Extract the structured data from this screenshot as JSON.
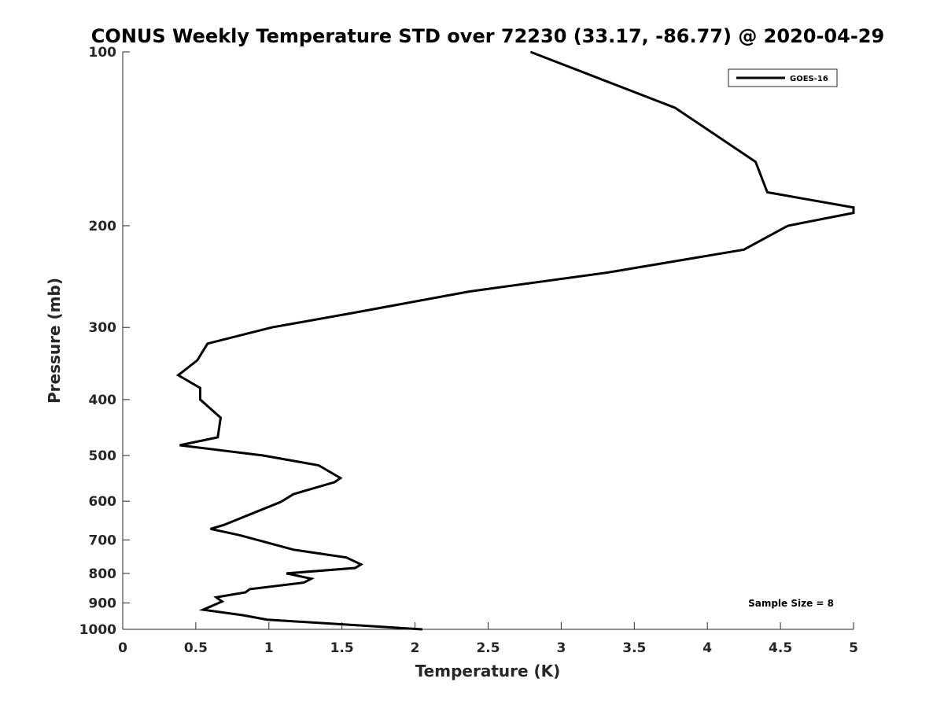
{
  "chart_data": {
    "type": "line",
    "title": "CONUS Weekly Temperature STD over 72230 (33.17, -86.77) @ 2020-04-29",
    "xlabel": "Temperature (K)",
    "ylabel": "Pressure (mb)",
    "xlim": [
      0,
      5
    ],
    "ylim": [
      100,
      1000
    ],
    "y_scale": "log",
    "y_reversed": true,
    "x_ticks": [
      "0",
      "0.5",
      "1",
      "1.5",
      "2",
      "2.5",
      "3",
      "3.5",
      "4",
      "4.5",
      "5"
    ],
    "y_ticks": [
      "100",
      "200",
      "300",
      "400",
      "500",
      "600",
      "700",
      "800",
      "900",
      "1000"
    ],
    "grid": false,
    "legend_position": "top-right",
    "annotation": "Sample Size = 8",
    "series": [
      {
        "name": "GOES-16",
        "color": "#000000",
        "points": [
          [
            2.79,
            100
          ],
          [
            3.78,
            125
          ],
          [
            4.33,
            155
          ],
          [
            4.41,
            175
          ],
          [
            5.0,
            186
          ],
          [
            5.0,
            190
          ],
          [
            4.55,
            200
          ],
          [
            4.25,
            220
          ],
          [
            3.32,
            241
          ],
          [
            2.37,
            260
          ],
          [
            1.58,
            283
          ],
          [
            1.02,
            300
          ],
          [
            0.58,
            320
          ],
          [
            0.51,
            342
          ],
          [
            0.38,
            363
          ],
          [
            0.53,
            382
          ],
          [
            0.53,
            400
          ],
          [
            0.67,
            430
          ],
          [
            0.65,
            465
          ],
          [
            0.39,
            480
          ],
          [
            0.96,
            500
          ],
          [
            1.34,
            520
          ],
          [
            1.49,
            547
          ],
          [
            1.45,
            556
          ],
          [
            1.17,
            583
          ],
          [
            1.08,
            602
          ],
          [
            0.92,
            625
          ],
          [
            0.69,
            660
          ],
          [
            0.6,
            670
          ],
          [
            0.8,
            687
          ],
          [
            1.02,
            711
          ],
          [
            1.17,
            728
          ],
          [
            1.53,
            751
          ],
          [
            1.63,
            772
          ],
          [
            1.59,
            783
          ],
          [
            1.12,
            800
          ],
          [
            1.29,
            817
          ],
          [
            1.24,
            830
          ],
          [
            0.87,
            852
          ],
          [
            0.84,
            863
          ],
          [
            0.64,
            880
          ],
          [
            0.68,
            895
          ],
          [
            0.55,
            925
          ],
          [
            0.82,
            945
          ],
          [
            0.99,
            962
          ],
          [
            2.05,
            1000
          ]
        ]
      }
    ]
  }
}
